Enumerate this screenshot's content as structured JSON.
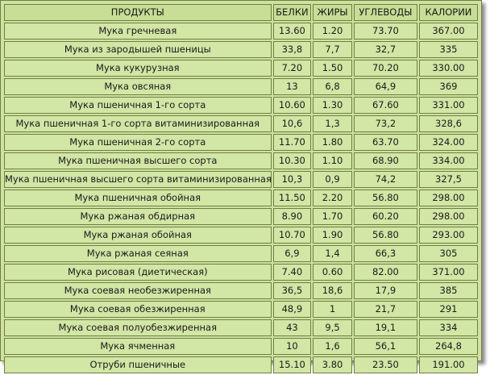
{
  "headers": [
    "ПРОДУКТЫ",
    "БЕЛКИ",
    "ЖИРЫ",
    "УГЛЕВОДЫ",
    "КАЛОРИИ"
  ],
  "rows": [
    [
      "Мука гречневая",
      "13.60",
      "1.20",
      "73.70",
      "367.00"
    ],
    [
      "Мука из зародышей пшеницы",
      "33,8",
      "7,7",
      "32,7",
      "335"
    ],
    [
      "Мука кукурузная",
      "7.20",
      "1.50",
      "70.20",
      "330.00"
    ],
    [
      "Мука овсяная",
      "13",
      "6,8",
      "64,9",
      "369"
    ],
    [
      "Мука пшеничная 1-го сорта",
      "10.60",
      "1.30",
      "67.60",
      "331.00"
    ],
    [
      "Мука пшеничная 1-го сорта витаминизированная",
      "10,6",
      "1,3",
      "73,2",
      "328,6"
    ],
    [
      "Мука пшеничная 2-го сорта",
      "11.70",
      "1.80",
      "63.70",
      "324.00"
    ],
    [
      "Мука пшеничная высшего сорта",
      "10.30",
      "1.10",
      "68.90",
      "334.00"
    ],
    [
      "Мука пшеничная высшего сорта витаминизированная",
      "10,3",
      "0,9",
      "74,2",
      "327,5"
    ],
    [
      "Мука пшеничная обойная",
      "11.50",
      "2.20",
      "56.80",
      "298.00"
    ],
    [
      "Мука ржаная обдирная",
      "8.90",
      "1.70",
      "60.20",
      "298.00"
    ],
    [
      "Мука ржаная обойная",
      "10.70",
      "1.90",
      "56.80",
      "293.00"
    ],
    [
      "Мука ржаная сеяная",
      "6,9",
      "1,4",
      "66,3",
      "305"
    ],
    [
      "Мука рисовая (диетическая)",
      "7.40",
      "0.60",
      "82.00",
      "371.00"
    ],
    [
      "Мука соевая необезжиренная",
      "36,5",
      "18,6",
      "17,9",
      "385"
    ],
    [
      "Мука соевая обезжиренная",
      "48,9",
      "1",
      "21,7",
      "291"
    ],
    [
      "Мука соевая полуобезжиренная",
      "43",
      "9,5",
      "19,1",
      "334"
    ],
    [
      "Мука ячменная",
      "10",
      "1,6",
      "56,1",
      "264,8"
    ],
    [
      "Отруби пшеничные",
      "15.10",
      "3.80",
      "23.50",
      "191.00"
    ]
  ]
}
